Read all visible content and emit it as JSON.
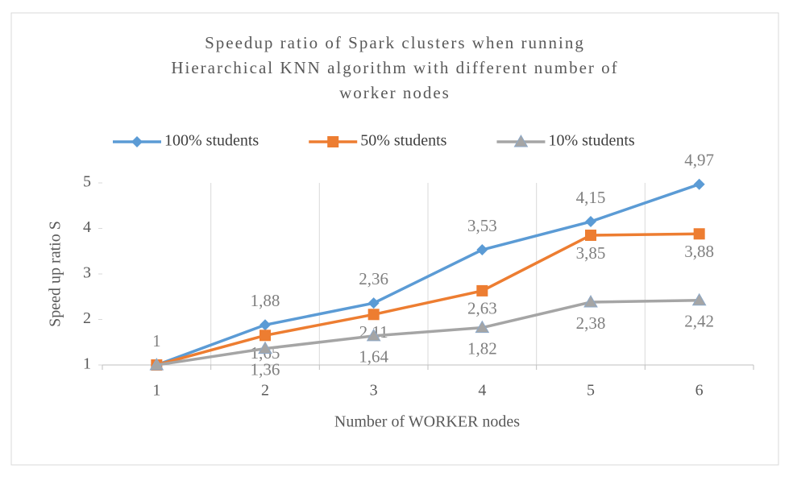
{
  "chart_data": {
    "type": "line",
    "title": [
      "Speedup ratio of Spark clusters when running",
      "Hierarchical KNN algorithm with different number of",
      "worker nodes"
    ],
    "x_label": "Number of WORKER nodes",
    "y_label": "Speed up ratio S",
    "categories": [
      "1",
      "2",
      "3",
      "4",
      "5",
      "6"
    ],
    "series": [
      {
        "name": "100% students",
        "color": "#5b9bd5",
        "marker": "diamond",
        "values": [
          1,
          1.88,
          2.36,
          3.53,
          4.15,
          4.97
        ],
        "value_labels": [
          "1",
          "1,88",
          "2,36",
          "3,53",
          "4,15",
          "4,97"
        ]
      },
      {
        "name": "50% students",
        "color": "#ed7d31",
        "marker": "square",
        "values": [
          1,
          1.65,
          2.11,
          2.63,
          3.85,
          3.88
        ],
        "value_labels": [
          null,
          "1,65",
          "2,11",
          "2,63",
          "3,85",
          "3,88"
        ]
      },
      {
        "name": "10% students",
        "color": "#a5a5a5",
        "marker": "triangle",
        "values": [
          1,
          1.36,
          1.64,
          1.82,
          2.38,
          2.42
        ],
        "value_labels": [
          null,
          "1,36",
          "1,64",
          "1,82",
          "2,38",
          "2,42"
        ]
      }
    ],
    "ylim": [
      1,
      5
    ],
    "yticks": [
      1,
      2,
      3,
      4,
      5
    ],
    "grid": true,
    "legend": "top"
  }
}
